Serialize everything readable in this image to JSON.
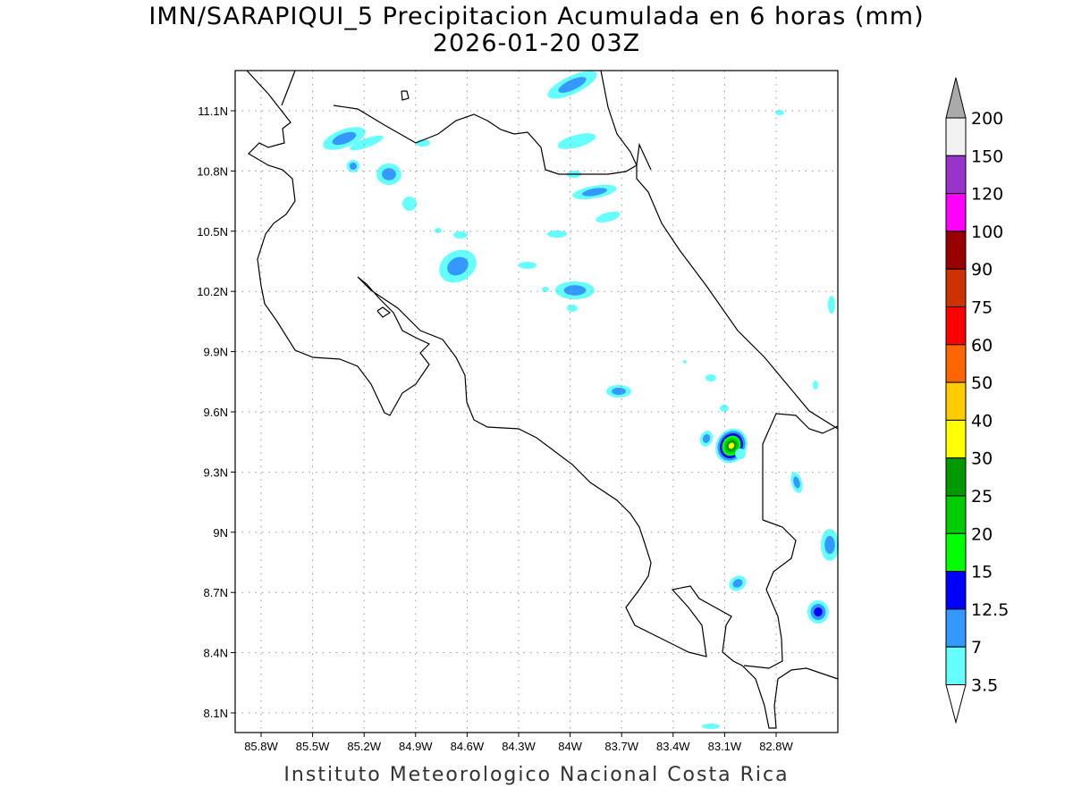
{
  "title": "IMN/SARAPIQUI_5 Precipitacion Acumulada en 6 horas (mm)",
  "subtitle": "2026-01-20 03Z",
  "footer": "Instituto Meteorologico Nacional Costa Rica",
  "map": {
    "lon_labels": [
      "85.8W",
      "85.5W",
      "85.2W",
      "84.9W",
      "84.6W",
      "84.3W",
      "84W",
      "83.7W",
      "83.4W",
      "83.1W",
      "82.8W"
    ],
    "lat_labels": [
      "11.1N",
      "10.8N",
      "10.5N",
      "10.2N",
      "9.9N",
      "9.6N",
      "9.3N",
      "9N",
      "8.7N",
      "8.4N",
      "8.1N"
    ],
    "grid": "dotted"
  },
  "colorbar": {
    "levels": [
      "3.5",
      "7",
      "12.5",
      "15",
      "20",
      "25",
      "30",
      "40",
      "50",
      "60",
      "75",
      "90",
      "100",
      "120",
      "150",
      "200"
    ],
    "colors": [
      "#66ffff",
      "#3399ff",
      "#0000ff",
      "#00ff00",
      "#00cc00",
      "#009900",
      "#ffff00",
      "#ffcc00",
      "#ff6600",
      "#ff0000",
      "#cc3300",
      "#990000",
      "#ff00ff",
      "#9933cc",
      "#f2f2f2"
    ],
    "over_color": "#aaaaaa",
    "under_color": "#ffffff"
  }
}
